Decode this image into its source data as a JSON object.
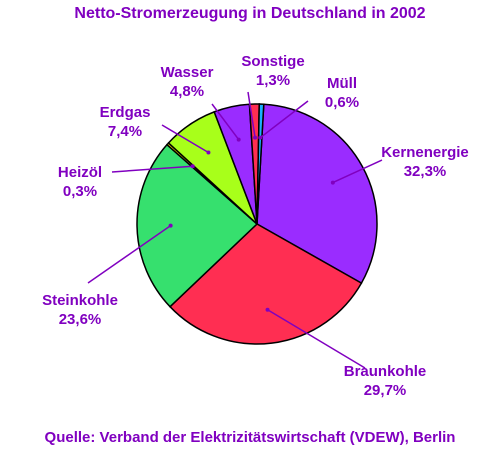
{
  "colors": {
    "text": "#8000c0",
    "background": "#ffffff",
    "outline": "#000000"
  },
  "chart_data": {
    "type": "pie",
    "title": "Netto-Stromerzeugung in Deutschland in 2002",
    "source": "Quelle: Verband der Elektrizitätswirtschaft (VDEW), Berlin",
    "slices": [
      {
        "name": "Kernenergie",
        "label": "32,3%",
        "value": 32.3,
        "color": "#9a2cff"
      },
      {
        "name": "Braunkohle",
        "label": "29,7%",
        "value": 29.7,
        "color": "#ff2e52"
      },
      {
        "name": "Steinkohle",
        "label": "23,6%",
        "value": 23.6,
        "color": "#36e06e"
      },
      {
        "name": "Heizöl",
        "label": "0,3%",
        "value": 0.3,
        "color": "#f0e000"
      },
      {
        "name": "Erdgas",
        "label": "7,4%",
        "value": 7.4,
        "color": "#a8ff1a"
      },
      {
        "name": "Wasser",
        "label": "4,8%",
        "value": 4.8,
        "color": "#9a2cff"
      },
      {
        "name": "Sonstige",
        "label": "1,3%",
        "value": 1.3,
        "color": "#ff2e52"
      },
      {
        "name": "Müll",
        "label": "0,6%",
        "value": 0.6,
        "color": "#1ab0ff"
      }
    ],
    "legend": "none"
  }
}
